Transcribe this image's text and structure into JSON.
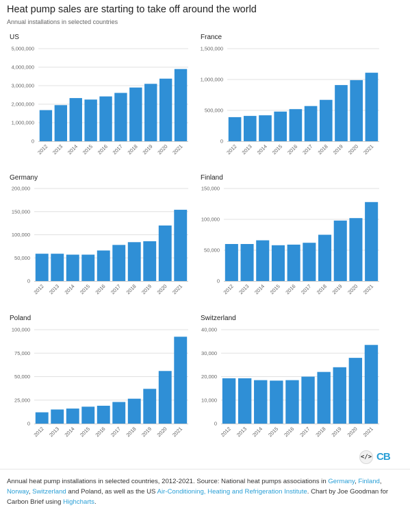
{
  "header": {
    "title": "Heat pump sales are starting to take off around the world",
    "subtitle": "Annual installations in selected countries"
  },
  "colors": {
    "bar": "#2f8fd6",
    "link": "#2a9fd6",
    "logo": "#2a9fd6"
  },
  "chart_data": [
    {
      "type": "bar",
      "title": "US",
      "categories": [
        "2012",
        "2013",
        "2014",
        "2015",
        "2016",
        "2017",
        "2018",
        "2019",
        "2020",
        "2021"
      ],
      "values": [
        1680000,
        1950000,
        2330000,
        2250000,
        2420000,
        2610000,
        2900000,
        3100000,
        3380000,
        3900000
      ],
      "ylim": [
        0,
        5000000
      ],
      "yticks": [
        "0",
        "1,000,000",
        "2,000,000",
        "3,000,000",
        "4,000,000",
        "5,000,000"
      ]
    },
    {
      "type": "bar",
      "title": "France",
      "categories": [
        "2012",
        "2013",
        "2014",
        "2015",
        "2016",
        "2017",
        "2018",
        "2019",
        "2020",
        "2021"
      ],
      "values": [
        390000,
        410000,
        420000,
        480000,
        520000,
        570000,
        670000,
        910000,
        990000,
        1110000
      ],
      "ylim": [
        0,
        1500000
      ],
      "yticks": [
        "0",
        "500,000",
        "1,000,000",
        "1,500,000"
      ]
    },
    {
      "type": "bar",
      "title": "Germany",
      "categories": [
        "2012",
        "2013",
        "2014",
        "2015",
        "2016",
        "2017",
        "2018",
        "2019",
        "2020",
        "2021"
      ],
      "values": [
        59000,
        59000,
        57000,
        57000,
        66000,
        78000,
        84000,
        86000,
        120000,
        154000
      ],
      "ylim": [
        0,
        200000
      ],
      "yticks": [
        "0",
        "50,000",
        "100,000",
        "150,000",
        "200,000"
      ]
    },
    {
      "type": "bar",
      "title": "Finland",
      "categories": [
        "2012",
        "2013",
        "2014",
        "2015",
        "2016",
        "2017",
        "2018",
        "2019",
        "2020",
        "2021"
      ],
      "values": [
        60000,
        60000,
        66000,
        58000,
        59000,
        62000,
        75000,
        98000,
        102000,
        128000
      ],
      "ylim": [
        0,
        150000
      ],
      "yticks": [
        "0",
        "50,000",
        "100,000",
        "150,000"
      ]
    },
    {
      "type": "bar",
      "title": "Poland",
      "categories": [
        "2012",
        "2013",
        "2014",
        "2015",
        "2016",
        "2017",
        "2018",
        "2019",
        "2020",
        "2021"
      ],
      "values": [
        12000,
        15000,
        16000,
        18000,
        19000,
        23000,
        26500,
        37000,
        56000,
        92500
      ],
      "ylim": [
        0,
        100000
      ],
      "yticks": [
        "0",
        "25,000",
        "50,000",
        "75,000",
        "100,000"
      ]
    },
    {
      "type": "bar",
      "title": "Switzerland",
      "categories": [
        "2012",
        "2013",
        "2014",
        "2015",
        "2016",
        "2017",
        "2018",
        "2019",
        "2020",
        "2021"
      ],
      "values": [
        19300,
        19300,
        18500,
        18300,
        18500,
        20000,
        22000,
        24000,
        28000,
        33500
      ],
      "ylim": [
        0,
        40000
      ],
      "yticks": [
        "0",
        "10,000",
        "20,000",
        "30,000",
        "40,000"
      ]
    }
  ],
  "footer": {
    "embed_icon": "</>",
    "logo": "CB",
    "caption_parts": [
      {
        "text": "Annual heat pump installations in selected countries, 2012-2021. Source: National heat pumps associations in ",
        "link": false
      },
      {
        "text": "Germany",
        "link": true
      },
      {
        "text": ", ",
        "link": false
      },
      {
        "text": "Finland",
        "link": true
      },
      {
        "text": ", ",
        "link": false
      },
      {
        "text": "Norway",
        "link": true
      },
      {
        "text": ", ",
        "link": false
      },
      {
        "text": "Switzerland",
        "link": true
      },
      {
        "text": " and Poland, as well as the US ",
        "link": false
      },
      {
        "text": "Air-Conditioning, Heating and Refrigeration Institute",
        "link": true
      },
      {
        "text": ". Chart by Joe Goodman for Carbon Brief using ",
        "link": false
      },
      {
        "text": "Highcharts",
        "link": true
      },
      {
        "text": ".",
        "link": false
      }
    ]
  }
}
